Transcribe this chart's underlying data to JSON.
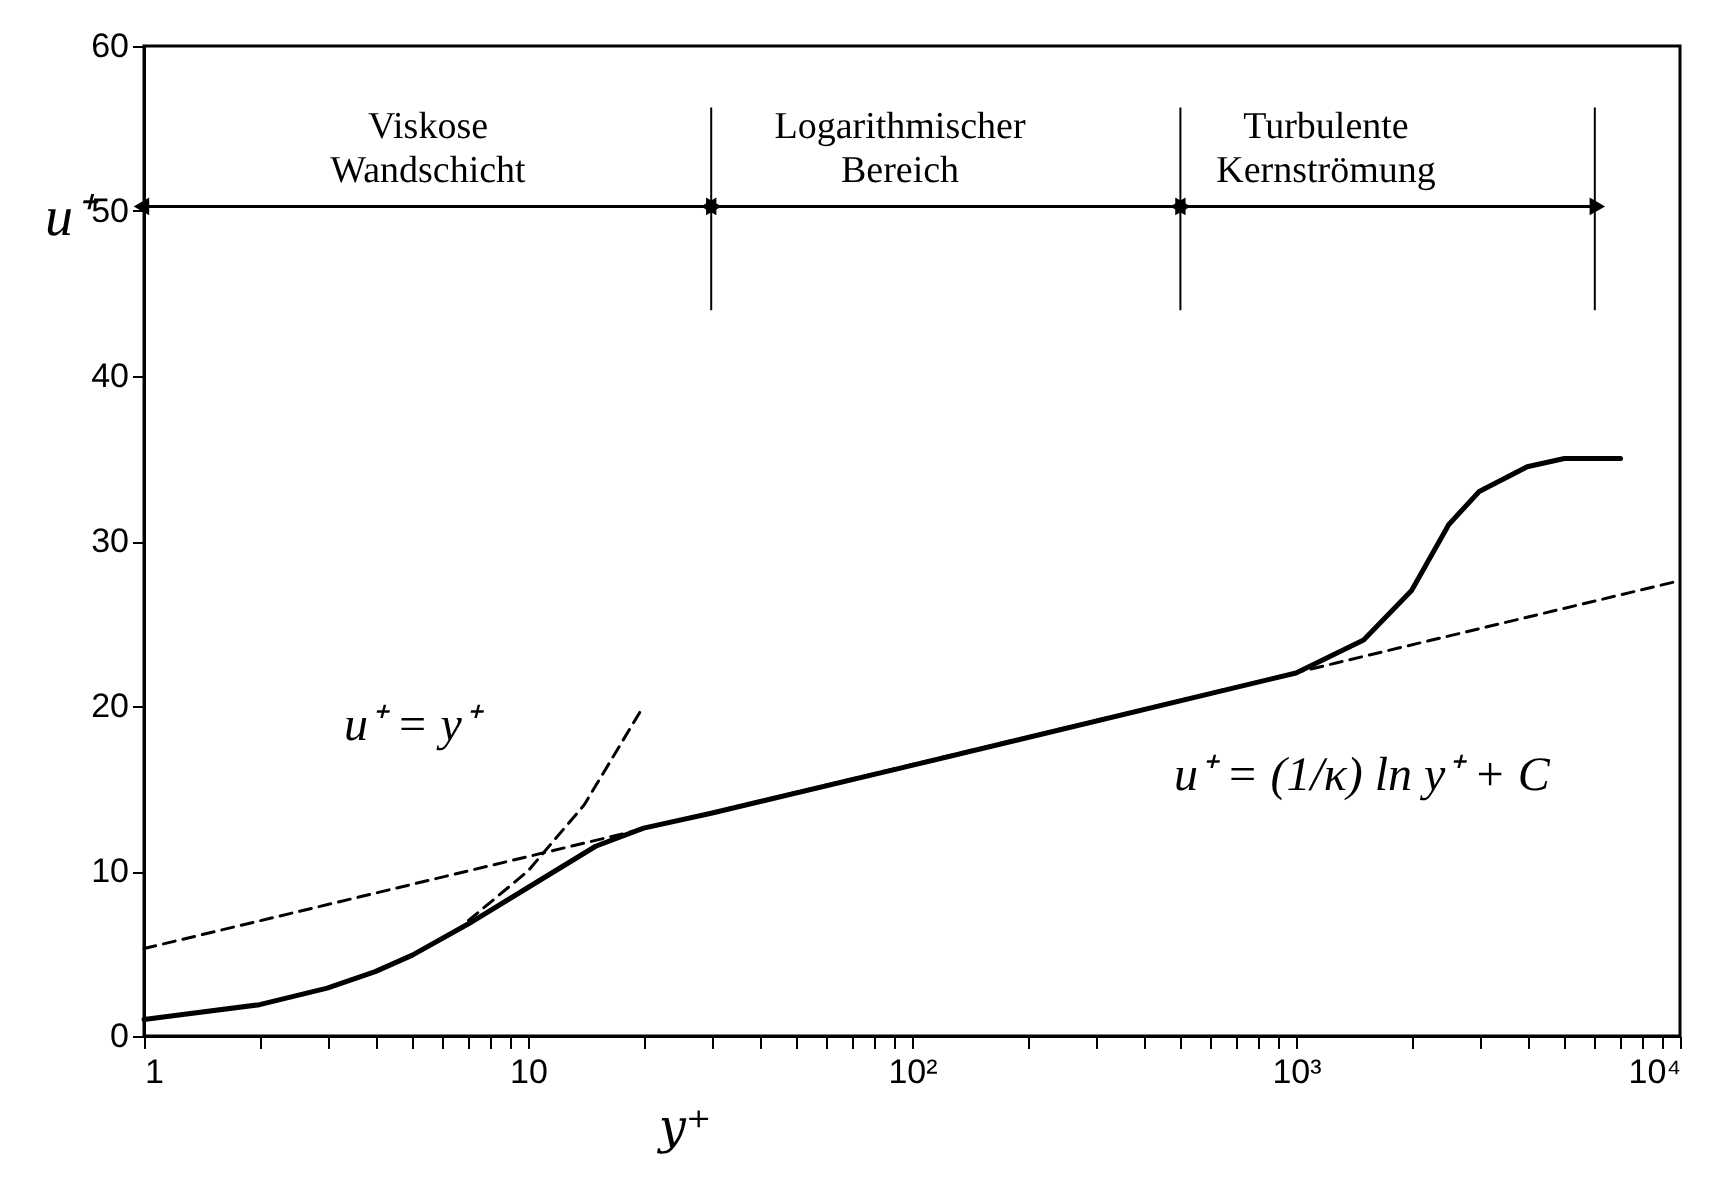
{
  "chart_data": {
    "type": "line",
    "xlabel": "y⁺",
    "ylabel": "u⁺",
    "log": "x",
    "xlim": [
      1,
      10000
    ],
    "ylim": [
      0,
      60
    ],
    "xticks": [
      1,
      {
        "value": 2,
        "label": null
      },
      {
        "value": 3,
        "label": null
      },
      {
        "value": 4,
        "label": null
      },
      {
        "value": 5,
        "label": null
      },
      {
        "value": 6,
        "label": null
      },
      {
        "value": 7,
        "label": null
      },
      {
        "value": 8,
        "label": null
      },
      {
        "value": 9,
        "label": null
      },
      10,
      {
        "value": 20,
        "label": null
      },
      {
        "value": 30,
        "label": null
      },
      {
        "value": 40,
        "label": null
      },
      {
        "value": 50,
        "label": null
      },
      {
        "value": 60,
        "label": null
      },
      {
        "value": 70,
        "label": null
      },
      {
        "value": 80,
        "label": null
      },
      {
        "value": 90,
        "label": null
      },
      {
        "value": 100,
        "label": "10²"
      },
      {
        "value": 200,
        "label": null
      },
      {
        "value": 300,
        "label": null
      },
      {
        "value": 400,
        "label": null
      },
      {
        "value": 500,
        "label": null
      },
      {
        "value": 600,
        "label": null
      },
      {
        "value": 700,
        "label": null
      },
      {
        "value": 800,
        "label": null
      },
      {
        "value": 900,
        "label": null
      },
      {
        "value": 1000,
        "label": "10³"
      },
      {
        "value": 2000,
        "label": null
      },
      {
        "value": 3000,
        "label": null
      },
      {
        "value": 4000,
        "label": null
      },
      {
        "value": 5000,
        "label": null
      },
      {
        "value": 6000,
        "label": null
      },
      {
        "value": 7000,
        "label": null
      },
      {
        "value": 8000,
        "label": null
      },
      {
        "value": 9000,
        "label": null
      },
      {
        "value": 10000,
        "label": "10⁴"
      }
    ],
    "yticks": [
      0,
      10,
      20,
      30,
      40,
      50,
      60
    ],
    "grid": false,
    "series": [
      {
        "color": "#000000",
        "line_style": "solid",
        "x": [
          1,
          2,
          3,
          4,
          5,
          7,
          10,
          15,
          20,
          30,
          100,
          1000,
          1500,
          2000,
          2500,
          3000,
          4000,
          5000,
          7000
        ],
        "values": [
          1.0,
          1.9,
          2.9,
          3.9,
          4.9,
          6.8,
          9.0,
          11.5,
          12.6,
          13.5,
          16.4,
          22,
          24,
          27,
          31,
          33,
          34.5,
          35,
          35
        ]
      },
      {
        "color": "#000000",
        "line_style": "dashed",
        "x": [
          7,
          10,
          14,
          20
        ],
        "values": [
          7,
          10,
          14,
          20
        ]
      },
      {
        "color": "#000000",
        "line_style": "dashed",
        "x": [
          1,
          10000
        ],
        "values": [
          5.3,
          27.6
        ]
      }
    ],
    "ref_lines": [
      {
        "axis": "x",
        "value": 30
      },
      {
        "axis": "x",
        "value": 500
      },
      {
        "axis": "x",
        "value": 6000
      }
    ],
    "annotations": [
      "Viskose\nWandschicht",
      "Logarithmischer\nBereich",
      "Turbulente\nKernströmung",
      "u⁺ = y⁺",
      "u⁺ = (1/κ) ln y⁺ + C"
    ]
  }
}
